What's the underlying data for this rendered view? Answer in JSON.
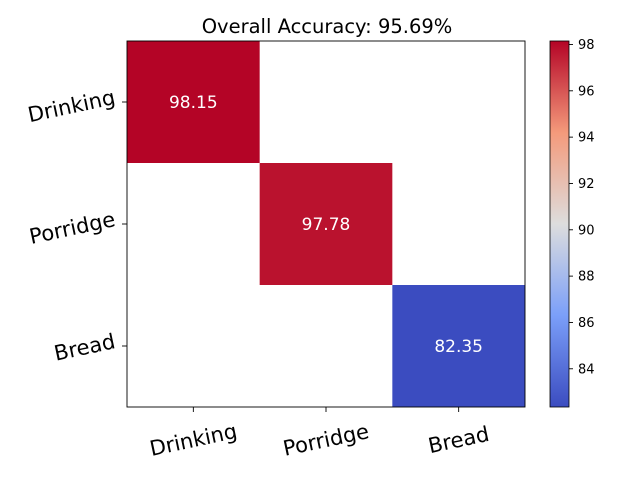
{
  "chart_data": {
    "type": "heatmap",
    "title": "Overall Accuracy: 95.69%",
    "xlabel": "",
    "ylabel": "",
    "x_categories": [
      "Drinking",
      "Porridge",
      "Bread"
    ],
    "y_categories": [
      "Drinking",
      "Porridge",
      "Bread"
    ],
    "cells": [
      {
        "row": 0,
        "col": 0,
        "value": 98.15,
        "label": "98.15"
      },
      {
        "row": 1,
        "col": 1,
        "value": 97.78,
        "label": "97.78"
      },
      {
        "row": 2,
        "col": 2,
        "value": 82.35,
        "label": "82.35"
      }
    ],
    "colormap": "coolwarm",
    "vmin": 82.35,
    "vmax": 98.15,
    "colorbar_ticks": [
      "84",
      "86",
      "88",
      "90",
      "92",
      "94",
      "96",
      "98"
    ],
    "grid": false
  }
}
